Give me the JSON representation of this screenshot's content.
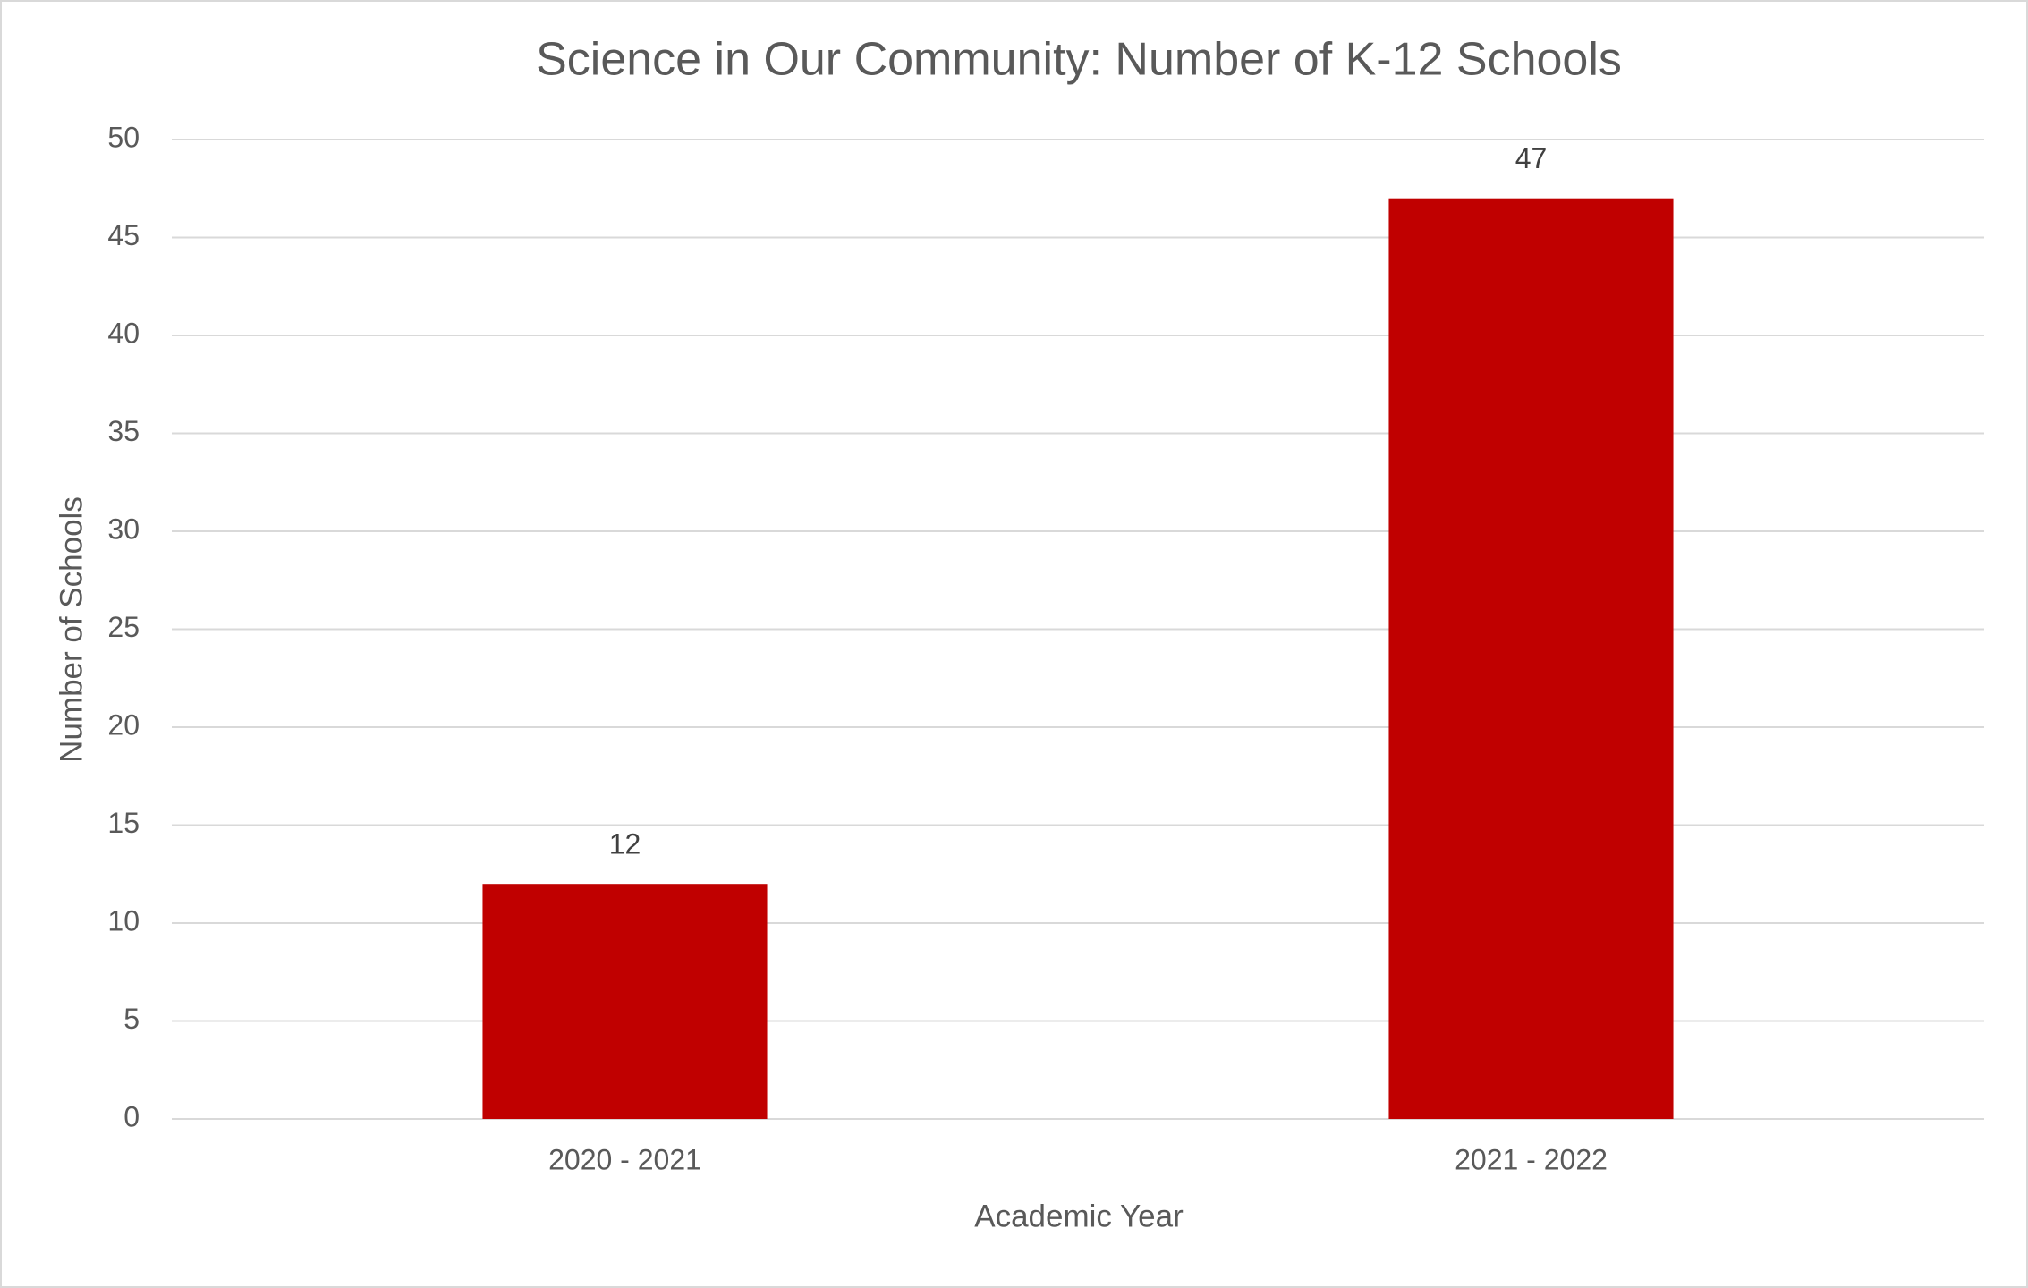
{
  "chart_data": {
    "type": "bar",
    "title": "Science in Our Community: Number of K-12 Schools",
    "x_label": "Academic Year",
    "y_label": "Number of Schools",
    "categories": [
      "2020 - 2021",
      "2021 - 2022"
    ],
    "values": [
      12,
      47
    ],
    "color": "#c00000",
    "ylim": [
      0,
      50
    ],
    "yticks": [
      0,
      5,
      10,
      15,
      20,
      25,
      30,
      35,
      40,
      45,
      50
    ],
    "grid": true
  }
}
